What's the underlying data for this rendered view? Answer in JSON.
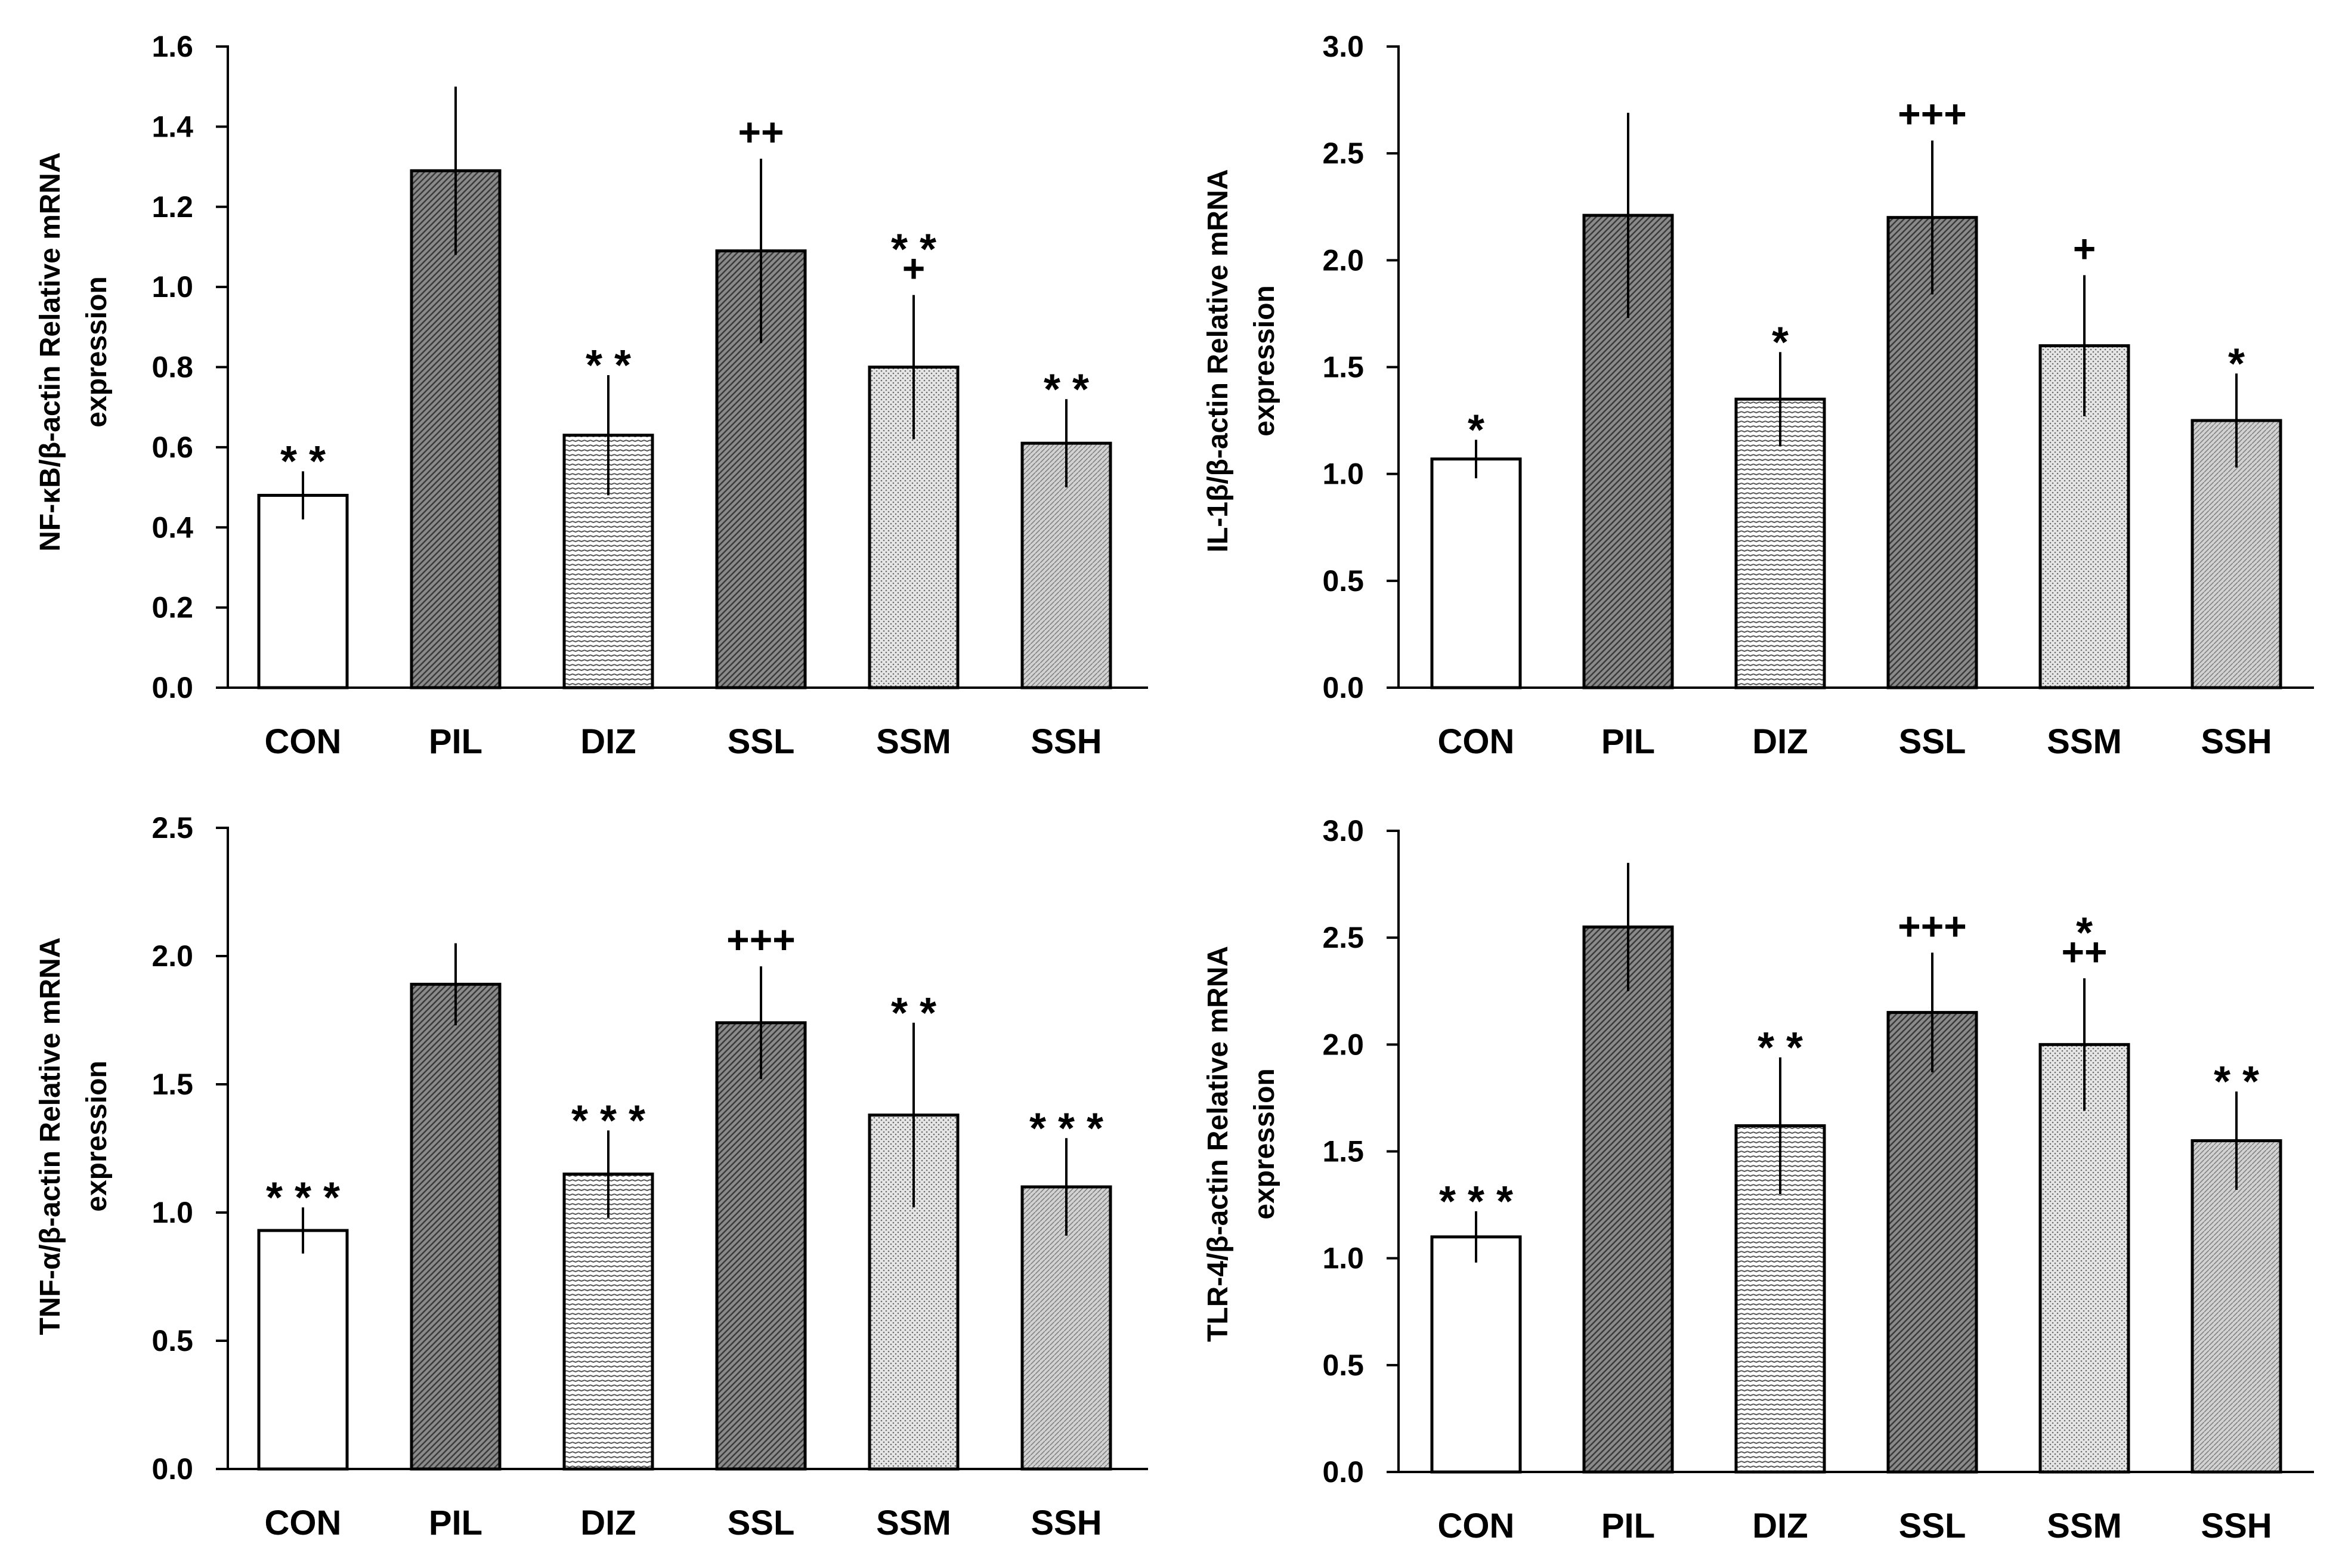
{
  "colors": {
    "axis": "#000000",
    "bar_stroke": "#000000",
    "white_bar": "#ffffff",
    "hatch": "#555555"
  },
  "chart_data": [
    {
      "type": "bar",
      "panel": "top-left",
      "ylabel_line1": "NF-κB/β-actin Relative mRNA",
      "ylabel_line2": "expression",
      "ylim": [
        0,
        1.6
      ],
      "yticks": [
        "0.0",
        "0.2",
        "0.4",
        "0.6",
        "0.8",
        "1.0",
        "1.2",
        "1.4",
        "1.6"
      ],
      "categories": [
        "CON",
        "PIL",
        "DIZ",
        "SSL",
        "SSM",
        "SSH"
      ],
      "values": [
        0.48,
        1.29,
        0.63,
        1.09,
        0.8,
        0.61
      ],
      "errors": [
        0.06,
        0.21,
        0.15,
        0.23,
        0.18,
        0.11
      ],
      "patterns": [
        "white",
        "dense",
        "horizontal",
        "dense",
        "dots",
        "fine"
      ],
      "annotations": [
        [
          "* *"
        ],
        [],
        [
          "* *"
        ],
        [
          "++"
        ],
        [
          "* *",
          "+"
        ],
        [
          "* *"
        ]
      ]
    },
    {
      "type": "bar",
      "panel": "top-right",
      "ylabel_line1": "IL-1β/β-actin Relative mRNA",
      "ylabel_line2": "expression",
      "ylim": [
        0,
        3.0
      ],
      "yticks": [
        "0.0",
        "0.5",
        "1.0",
        "1.5",
        "2.0",
        "2.5",
        "3.0"
      ],
      "categories": [
        "CON",
        "PIL",
        "DIZ",
        "SSL",
        "SSM",
        "SSH"
      ],
      "values": [
        1.07,
        2.21,
        1.35,
        2.2,
        1.6,
        1.25
      ],
      "errors": [
        0.09,
        0.48,
        0.22,
        0.36,
        0.33,
        0.22
      ],
      "patterns": [
        "white",
        "dense",
        "horizontal",
        "dense",
        "dots",
        "fine"
      ],
      "annotations": [
        [
          "*"
        ],
        [],
        [
          "*"
        ],
        [
          "+++"
        ],
        [
          "+"
        ],
        [
          "*"
        ]
      ]
    },
    {
      "type": "bar",
      "panel": "bottom-left",
      "ylabel_line1": "TNF-α/β-actin Relative mRNA",
      "ylabel_line2": "expression",
      "ylim": [
        0,
        2.5
      ],
      "yticks": [
        "0.0",
        "0.5",
        "1.0",
        "1.5",
        "2.0",
        "2.5"
      ],
      "categories": [
        "CON",
        "PIL",
        "DIZ",
        "SSL",
        "SSM",
        "SSH"
      ],
      "values": [
        0.93,
        1.89,
        1.15,
        1.74,
        1.38,
        1.1
      ],
      "errors": [
        0.09,
        0.16,
        0.17,
        0.22,
        0.36,
        0.19
      ],
      "patterns": [
        "white",
        "dense",
        "horizontal",
        "dense",
        "dots",
        "fine"
      ],
      "annotations": [
        [
          "* * *"
        ],
        [],
        [
          "* * *"
        ],
        [
          "+++"
        ],
        [
          "* *"
        ],
        [
          "* * *"
        ]
      ]
    },
    {
      "type": "bar",
      "panel": "bottom-right",
      "ylabel_line1": "TLR-4/β-actin Relative mRNA",
      "ylabel_line2": "expression",
      "ylim": [
        0,
        3.0
      ],
      "yticks": [
        "0.0",
        "0.5",
        "1.0",
        "1.5",
        "2.0",
        "2.5",
        "3.0"
      ],
      "categories": [
        "CON",
        "PIL",
        "DIZ",
        "SSL",
        "SSM",
        "SSH"
      ],
      "values": [
        1.1,
        2.55,
        1.62,
        2.15,
        2.0,
        1.55
      ],
      "errors": [
        0.12,
        0.3,
        0.32,
        0.28,
        0.31,
        0.23
      ],
      "patterns": [
        "white",
        "dense",
        "horizontal",
        "dense",
        "dots",
        "fine"
      ],
      "annotations": [
        [
          "* * *"
        ],
        [],
        [
          "* *"
        ],
        [
          "+++"
        ],
        [
          "*",
          "++"
        ],
        [
          "* *"
        ]
      ]
    }
  ]
}
